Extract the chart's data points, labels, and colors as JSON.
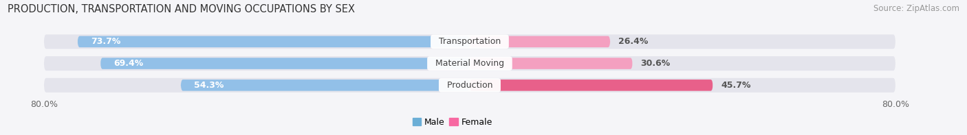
{
  "title": "PRODUCTION, TRANSPORTATION AND MOVING OCCUPATIONS BY SEX",
  "source": "Source: ZipAtlas.com",
  "categories": [
    "Transportation",
    "Material Moving",
    "Production"
  ],
  "male_values": [
    73.7,
    69.4,
    54.3
  ],
  "female_values": [
    26.4,
    30.6,
    45.7
  ],
  "male_color": "#92C0E8",
  "female_color": "#F4A0C0",
  "female_color_production": "#E8608A",
  "male_color_legend": "#6BAED6",
  "female_color_legend": "#F768A1",
  "bar_bg_color": "#E4E4EC",
  "axis_min": -80.0,
  "axis_max": 80.0,
  "left_tick_label": "80.0%",
  "right_tick_label": "80.0%",
  "title_fontsize": 10.5,
  "source_fontsize": 8.5,
  "label_fontsize": 9,
  "tick_fontsize": 9,
  "background_color": "#F5F5F8",
  "text_color_inside": "white",
  "text_color_outside": "#555555",
  "category_label_color": "#444444"
}
